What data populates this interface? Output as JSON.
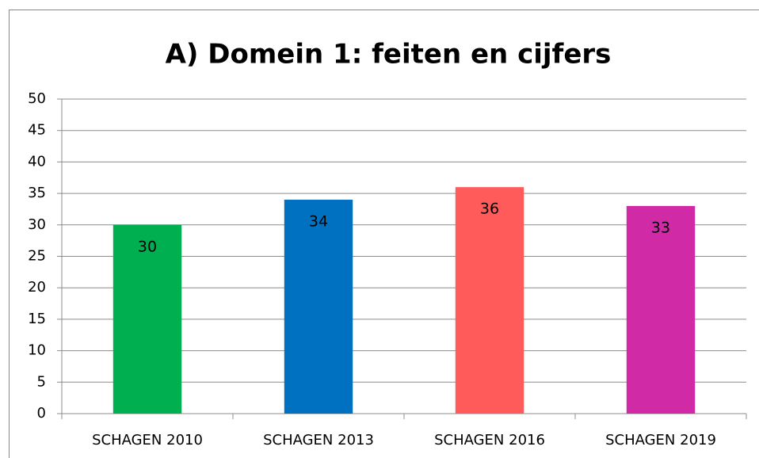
{
  "chart_data": {
    "type": "bar",
    "title": "A) Domein 1: feiten en cijfers",
    "categories": [
      "SCHAGEN 2010",
      "SCHAGEN 2013",
      "SCHAGEN 2016",
      "SCHAGEN 2019"
    ],
    "values": [
      30,
      34,
      36,
      33
    ],
    "colors": [
      "#00b050",
      "#0070c0",
      "#ff5b5b",
      "#d12aa6"
    ],
    "ylim": [
      0,
      50
    ],
    "yticks": [
      0,
      5,
      10,
      15,
      20,
      25,
      30,
      35,
      40,
      45,
      50
    ],
    "grid": true
  }
}
